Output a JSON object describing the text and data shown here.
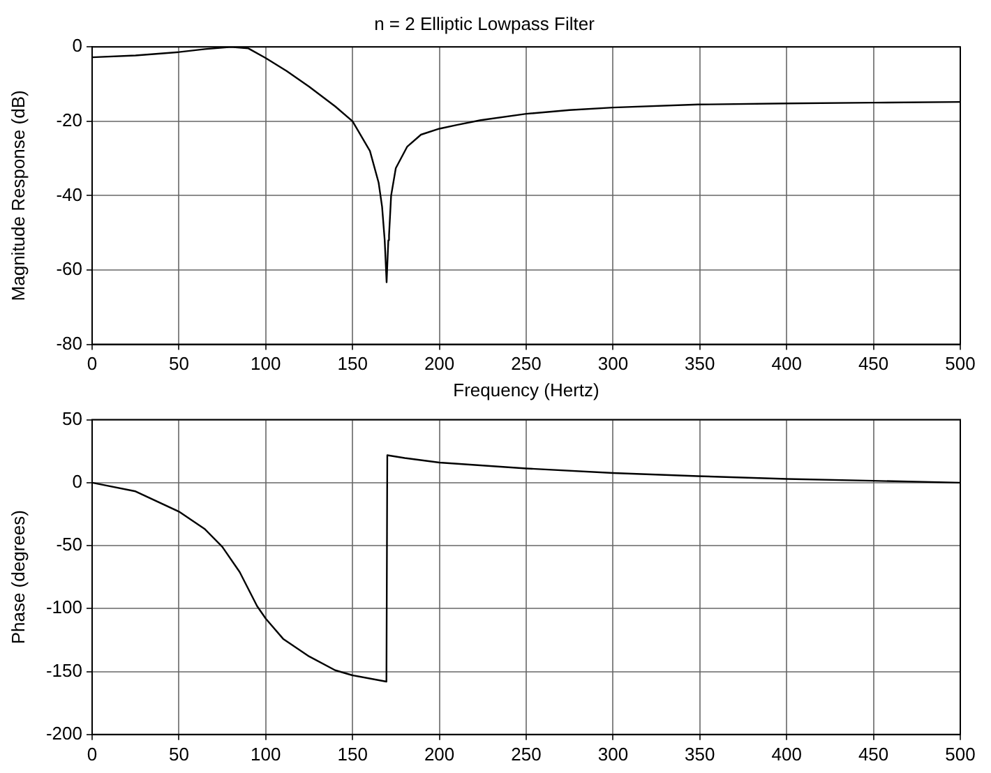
{
  "chart_data": [
    {
      "type": "line",
      "title": "n = 2 Elliptic Lowpass Filter",
      "xlabel": "Frequency (Hertz)",
      "ylabel": "Magnitude Response (dB)",
      "xlim": [
        0,
        500
      ],
      "xticks": [
        0,
        50,
        100,
        150,
        200,
        250,
        300,
        350,
        400,
        450,
        500
      ],
      "ylim": [
        -80,
        0
      ],
      "yticks": [
        -80,
        -60,
        -40,
        -20,
        0
      ],
      "grid": true,
      "legend": false,
      "marker": "none",
      "line_style": "solid",
      "series": [
        {
          "color": "#000000",
          "x": [
            0,
            25,
            50,
            65,
            80,
            90,
            100,
            112,
            125,
            140,
            150,
            160,
            165,
            167,
            168.5,
            169.6,
            170.6,
            171,
            172.2,
            174.9,
            181.5,
            189.4,
            200,
            210,
            223.8,
            250,
            275,
            300,
            349,
            400,
            450,
            500
          ],
          "values": [
            -2.8,
            -2.3,
            -1.4,
            -0.6,
            0,
            -0.4,
            -3,
            -6.5,
            -10.7,
            -16,
            -20,
            -28,
            -36.5,
            -43,
            -52,
            -63.3,
            -52,
            -50.7,
            -40,
            -32.6,
            -26.8,
            -23.6,
            -22,
            -21,
            -19.7,
            -18,
            -17,
            -16.3,
            -15.5,
            -15.2,
            -15,
            -14.8
          ]
        }
      ]
    },
    {
      "type": "line",
      "ylabel": "Phase (degrees)",
      "xlim": [
        0,
        500
      ],
      "xticks": [
        0,
        50,
        100,
        150,
        200,
        250,
        300,
        350,
        400,
        450,
        500
      ],
      "ylim": [
        -200,
        50
      ],
      "yticks": [
        -200,
        -150,
        -100,
        -50,
        0,
        50
      ],
      "grid": true,
      "legend": false,
      "marker": "none",
      "line_style": "solid",
      "series": [
        {
          "color": "#000000",
          "x": [
            0,
            25,
            50,
            65,
            75,
            85,
            95,
            100,
            110,
            125,
            140,
            150,
            169.5,
            170,
            180,
            200,
            250,
            300,
            349,
            400,
            450,
            500
          ],
          "values": [
            0,
            -6.9,
            -23,
            -37,
            -51,
            -71,
            -98,
            -108,
            -124,
            -138,
            -149,
            -153,
            -158,
            21.8,
            19.6,
            16,
            11.3,
            7.7,
            5.2,
            3,
            1.5,
            0
          ]
        }
      ]
    }
  ]
}
